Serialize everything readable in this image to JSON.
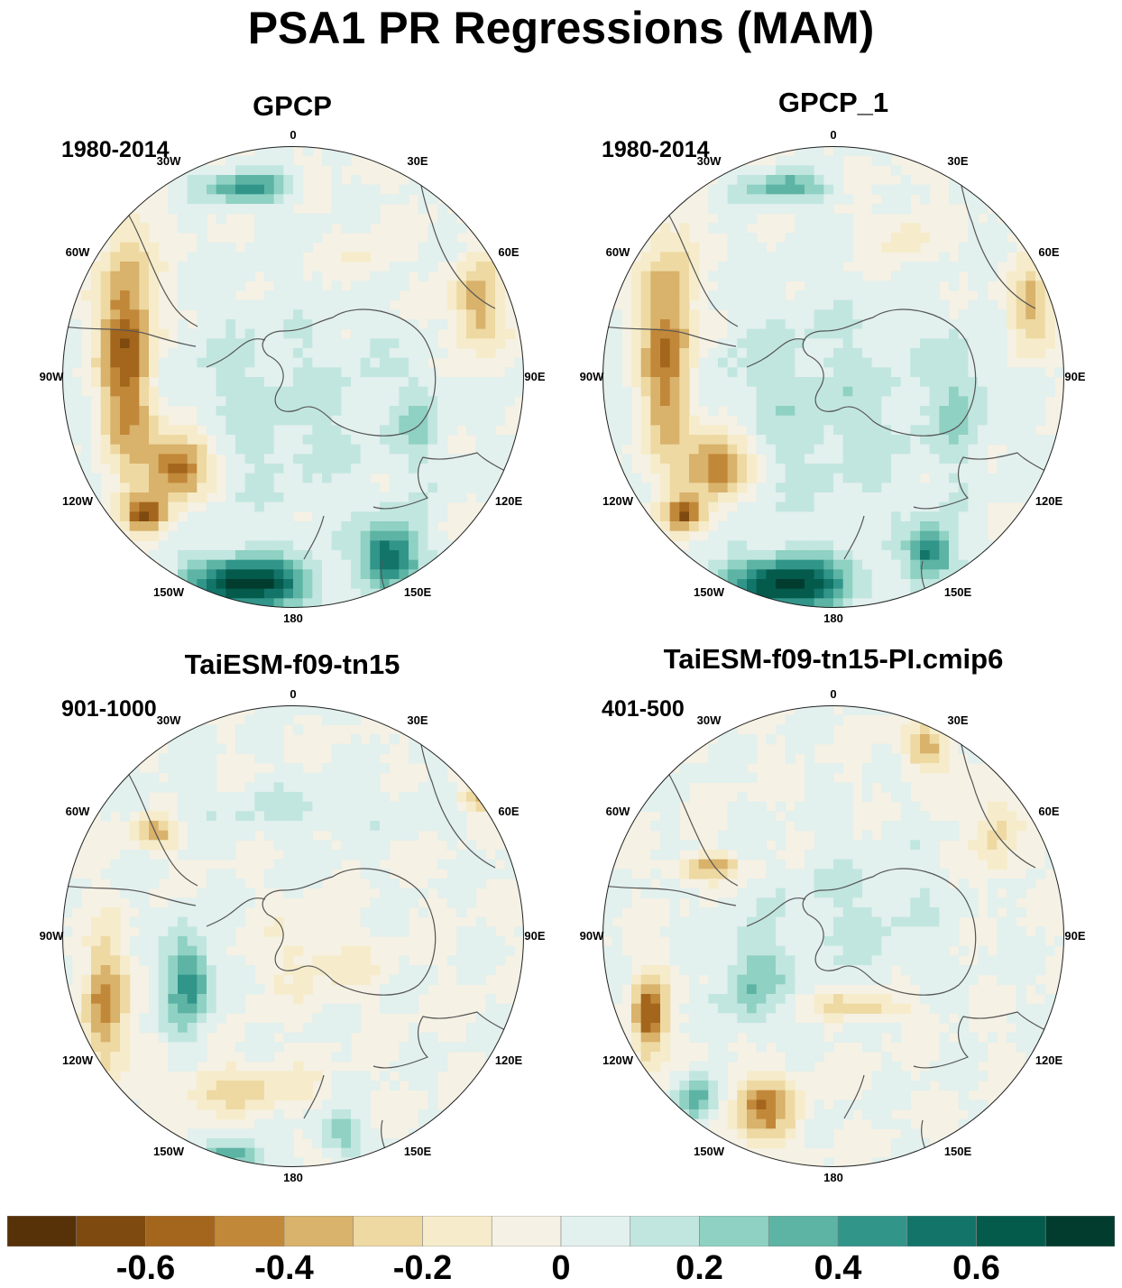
{
  "title": "PSA1 PR Regressions (MAM)",
  "chart_data": {
    "type": "heatmap",
    "projection": "south polar stereographic",
    "panels": [
      {
        "title": "GPCP",
        "period": "1980-2014"
      },
      {
        "title": "GPCP_1",
        "period": "1980-2014"
      },
      {
        "title": "TaiESM-f09-tn15",
        "period": "901-1000"
      },
      {
        "title": "TaiESM-f09-tn15-PI.cmip6",
        "period": "401-500"
      }
    ],
    "longitude_labels": [
      "0",
      "30E",
      "60E",
      "90E",
      "120E",
      "150E",
      "180",
      "150W",
      "120W",
      "90W",
      "60W",
      "30W"
    ],
    "colorbar": {
      "levels": [
        -0.7,
        -0.6,
        -0.5,
        -0.4,
        -0.3,
        -0.2,
        -0.1,
        0,
        0.1,
        0.2,
        0.3,
        0.4,
        0.5,
        0.6,
        0.7
      ],
      "colors": [
        "#573108",
        "#7f4a0f",
        "#a3661c",
        "#c2883a",
        "#d9b26b",
        "#eed9a3",
        "#f6eccb",
        "#f5f1e4",
        "#e2f0ee",
        "#c1e6df",
        "#8fd1c3",
        "#5db4a4",
        "#32958a",
        "#13756a",
        "#045b4c",
        "#013c2f"
      ],
      "tick_labels": [
        "-0.6",
        "-0.4",
        "-0.2",
        "0",
        "0.2",
        "0.4",
        "0.6"
      ]
    }
  }
}
